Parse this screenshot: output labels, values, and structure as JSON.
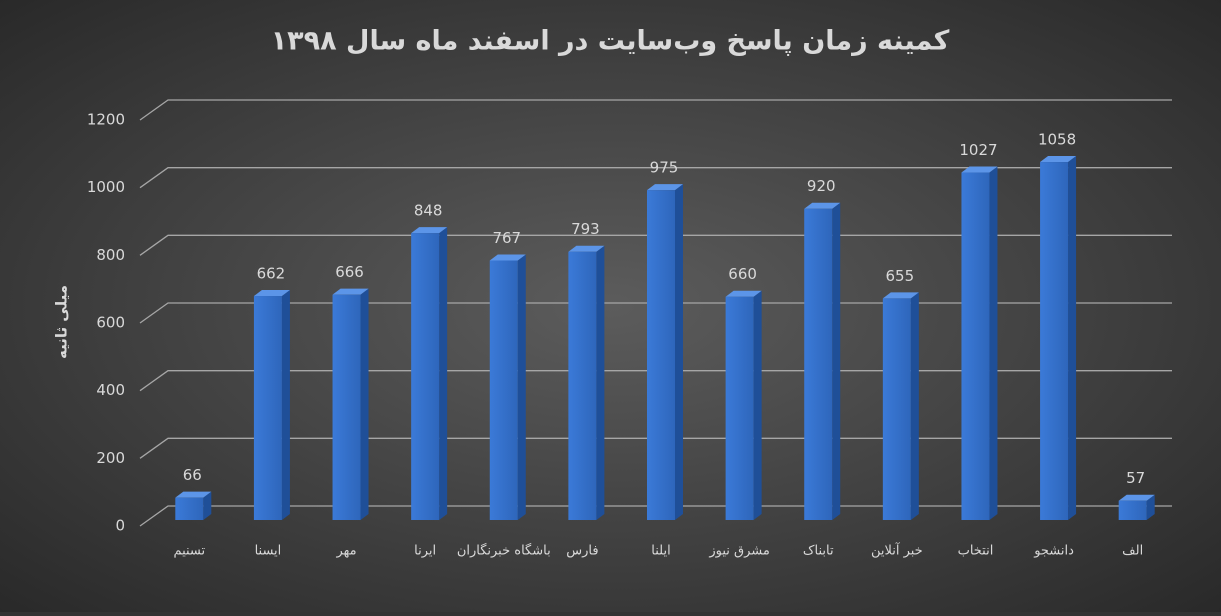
{
  "chart_data": {
    "type": "bar",
    "title": "کمینه زمان پاسخ وب‌سایت در اسفند ماه سال ۱۳۹۸",
    "y_label": "میلی ثانیه",
    "categories": [
      "تسنیم",
      "ایسنا",
      "مهر",
      "ایرنا",
      "باشگاه خبرنگاران",
      "فارس",
      "ایلنا",
      "مشرق نیوز",
      "تابناک",
      "خبر آنلاین",
      "انتخاب",
      "دانشجو",
      "الف"
    ],
    "values": [
      66,
      662,
      666,
      848,
      767,
      793,
      975,
      660,
      920,
      655,
      1027,
      1058,
      57
    ],
    "color": "#3a78d6",
    "ylim": [
      0,
      1200
    ],
    "yticks": [
      0,
      200,
      400,
      600,
      800,
      1000,
      1200
    ],
    "grid": true
  }
}
